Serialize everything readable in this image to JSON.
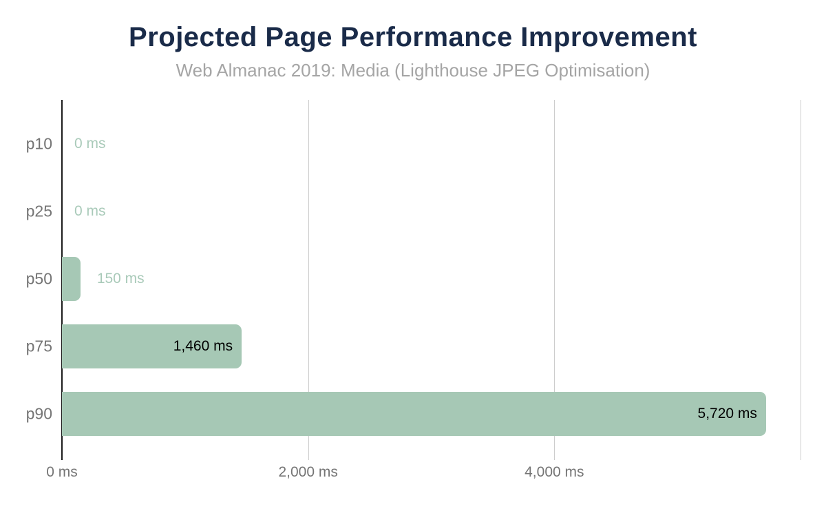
{
  "chart_data": {
    "type": "bar",
    "orientation": "horizontal",
    "title": "Projected Page Performance Improvement",
    "subtitle": "Web Almanac 2019: Media (Lighthouse JPEG Optimisation)",
    "categories": [
      "p10",
      "p25",
      "p50",
      "p75",
      "p90"
    ],
    "values": [
      0,
      0,
      150,
      1460,
      5720
    ],
    "value_labels": [
      "0 ms",
      "0 ms",
      "150 ms",
      "1,460 ms",
      "5,720 ms"
    ],
    "label_placement": [
      "outside",
      "outside",
      "outside",
      "inside",
      "inside"
    ],
    "x_unit": "ms",
    "xlabel": "",
    "ylabel": "",
    "xlim": [
      0,
      6000
    ],
    "x_ticks": [
      {
        "value": 0,
        "label": "0 ms"
      },
      {
        "value": 2000,
        "label": "2,000 ms"
      },
      {
        "value": 4000,
        "label": "4,000 ms"
      },
      {
        "value": 6000,
        "label": ""
      }
    ],
    "grid": true,
    "legend": "none",
    "colors": {
      "bar": "#a6c8b5",
      "annotation_outside": "#a9cab9",
      "annotation_inside": "#000000",
      "axis_line": "#1c1c1c",
      "gridline": "#cccccc",
      "tick_label": "#757575",
      "category_label": "#757575",
      "title": "#1a2b49",
      "subtitle": "#a5a5a5",
      "background": "#ffffff"
    }
  }
}
